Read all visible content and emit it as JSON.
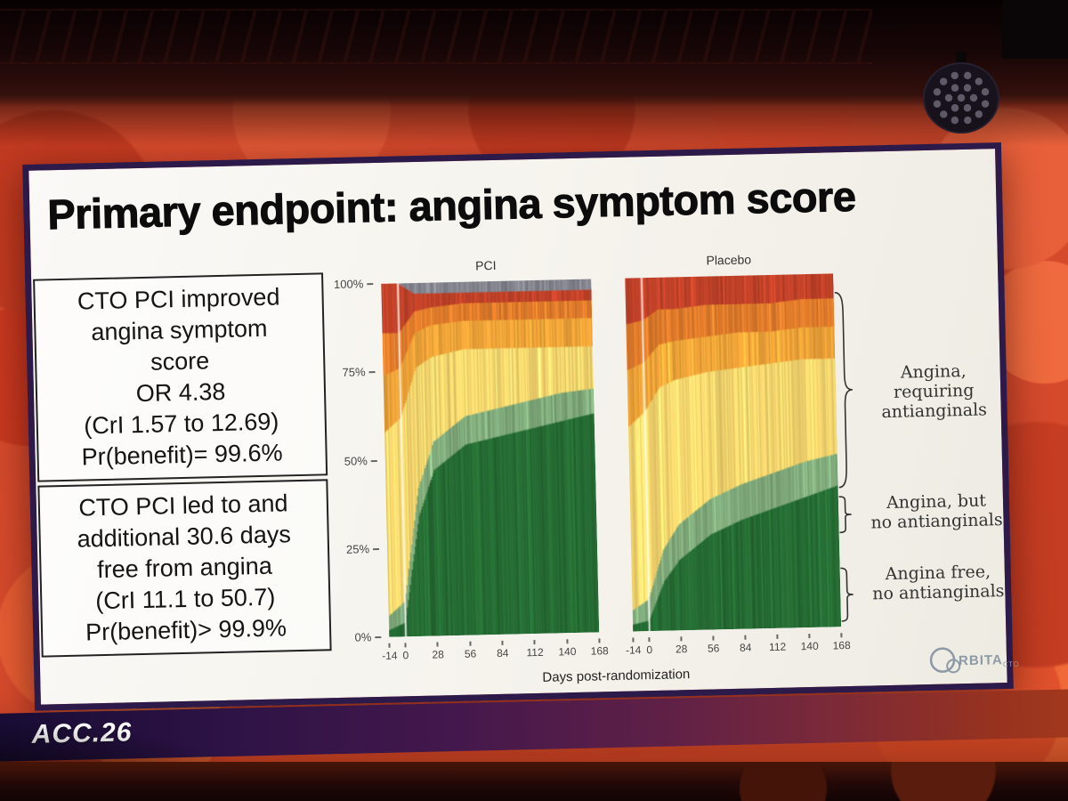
{
  "scene": {
    "conference_badge": "ACC.26"
  },
  "slide": {
    "title": "Primary endpoint: angina symptom score",
    "stat_boxes": [
      {
        "lines": [
          "CTO PCI improved",
          "angina symptom",
          "score",
          "OR 4.38",
          "(CrI 1.57 to 12.69)",
          "Pr(benefit)= 99.6%"
        ]
      },
      {
        "lines": [
          "CTO PCI led to and",
          "additional 30.6 days",
          "free from angina",
          "(CrI 11.1 to 50.7)",
          "Pr(benefit)> 99.9%"
        ]
      }
    ],
    "annotations": [
      {
        "lines": [
          "Angina,",
          "requiring",
          "antianginals"
        ]
      },
      {
        "lines": [
          "Angina, but",
          "no antianginals"
        ]
      },
      {
        "lines": [
          "Angina free,",
          "no antianginals"
        ]
      }
    ],
    "logo": {
      "text_rest": "RBITA",
      "sub": "CTO"
    }
  },
  "chart_data": [
    {
      "type": "area",
      "stacked": true,
      "title": "PCI",
      "xlabel": "Days post-randomization",
      "ylabel": "",
      "ylim": [
        0,
        100
      ],
      "x": [
        -14,
        0,
        14,
        28,
        56,
        84,
        112,
        140,
        168
      ],
      "x_tick_labels": [
        "-14",
        "0",
        "28",
        "56",
        "84",
        "112",
        "140",
        "168"
      ],
      "y_tick_labels": [
        "100%",
        "75%",
        "50%",
        "25%",
        "0%"
      ],
      "series": [
        {
          "name": "Angina free, no antianginals",
          "color": "#256b33",
          "values": [
            2,
            4,
            34,
            47,
            54,
            56,
            58,
            60,
            62
          ]
        },
        {
          "name": "Angina, but no antianginals",
          "color": "#7fa97a",
          "values": [
            4,
            6,
            8,
            8,
            8,
            8,
            8,
            8,
            7
          ]
        },
        {
          "name": "Angina, requiring antianginals",
          "color": "#f3d46d",
          "values": [
            52,
            52,
            34,
            24,
            19,
            17,
            15,
            13,
            12
          ]
        },
        {
          "name": "unlabeled-orange",
          "color": "#f0a438",
          "values": [
            16,
            14,
            10,
            9,
            8,
            8,
            8,
            8,
            8
          ]
        },
        {
          "name": "unlabeled-dark-orange",
          "color": "#df7b2b",
          "values": [
            12,
            10,
            6,
            5,
            5,
            5,
            5,
            5,
            5
          ]
        },
        {
          "name": "unlabeled-red",
          "color": "#bf4128",
          "values": [
            14,
            14,
            5,
            4,
            3,
            3,
            3,
            3,
            3
          ]
        },
        {
          "name": "unlabeled-gray",
          "color": "#83838d",
          "values": [
            0,
            0,
            3,
            3,
            3,
            3,
            3,
            3,
            3
          ]
        }
      ]
    },
    {
      "type": "area",
      "stacked": true,
      "title": "Placebo",
      "xlabel": "Days post-randomization",
      "ylabel": "",
      "ylim": [
        0,
        100
      ],
      "x": [
        -14,
        0,
        14,
        28,
        56,
        84,
        112,
        140,
        168
      ],
      "x_tick_labels": [
        "-14",
        "0",
        "28",
        "56",
        "84",
        "112",
        "140",
        "168"
      ],
      "y_tick_labels": [
        "100%",
        "75%",
        "50%",
        "25%",
        "0%"
      ],
      "series": [
        {
          "name": "Angina free, no antianginals",
          "color": "#256b33",
          "values": [
            2,
            3,
            14,
            20,
            27,
            31,
            34,
            37,
            40
          ]
        },
        {
          "name": "Angina, but no antianginals",
          "color": "#7fa97a",
          "values": [
            4,
            6,
            9,
            10,
            10,
            10,
            10,
            10,
            9
          ]
        },
        {
          "name": "Angina, requiring antianginals",
          "color": "#f3d46d",
          "values": [
            52,
            53,
            46,
            41,
            36,
            33,
            31,
            29,
            27
          ]
        },
        {
          "name": "unlabeled-orange",
          "color": "#f0a438",
          "values": [
            16,
            14,
            12,
            11,
            10,
            10,
            9,
            9,
            9
          ]
        },
        {
          "name": "unlabeled-dark-orange",
          "color": "#df7b2b",
          "values": [
            13,
            12,
            10,
            9,
            9,
            8,
            8,
            8,
            8
          ]
        },
        {
          "name": "unlabeled-red",
          "color": "#bf4128",
          "values": [
            13,
            12,
            9,
            9,
            8,
            8,
            8,
            7,
            7
          ]
        },
        {
          "name": "unlabeled-gray",
          "color": "#83838d",
          "values": [
            0,
            0,
            0,
            0,
            0,
            0,
            0,
            0,
            0
          ]
        }
      ]
    }
  ]
}
